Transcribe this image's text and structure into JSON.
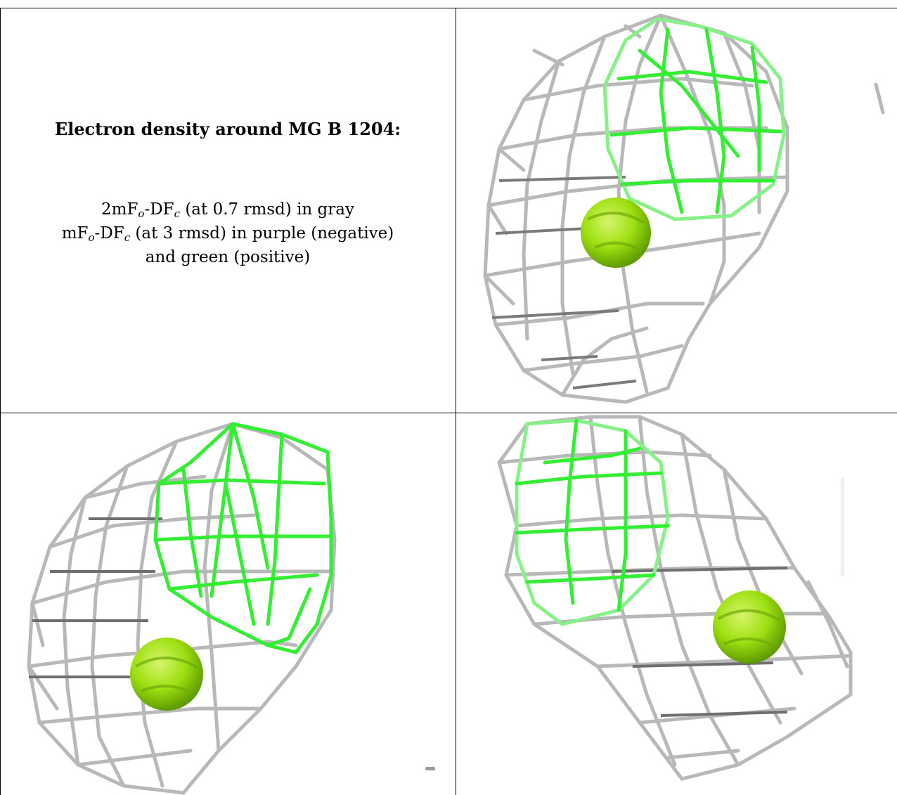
{
  "caption": {
    "title": "Electron density around MG B 1204:",
    "line1": {
      "a": "2mF",
      "a_sub": "o",
      "b": "-DF",
      "b_sub": "c",
      "c": " (at 0.7 rmsd) in gray"
    },
    "line2": {
      "a": "mF",
      "a_sub": "o",
      "b": "-DF",
      "b_sub": "c",
      "c": " (at 3 rmsd) in purple (negative)"
    },
    "line3": "and green (positive)"
  },
  "colors": {
    "gray_mesh": "#b8b8b8",
    "gray_mesh_dark": "#7a7a7a",
    "green_mesh": "#33ee33",
    "green_mesh_light": "#88f088",
    "sphere": "#9ee012",
    "border": "#000000"
  },
  "icons": [
    "mg-sphere-icon"
  ]
}
